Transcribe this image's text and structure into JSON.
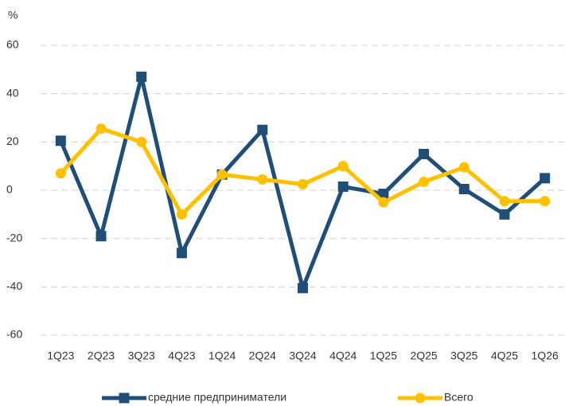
{
  "chart_data": {
    "type": "line",
    "ylabel": "%",
    "categories": [
      "1Q23",
      "2Q23",
      "3Q23",
      "4Q23",
      "1Q24",
      "2Q24",
      "3Q24",
      "4Q24",
      "1Q25",
      "2Q25",
      "3Q25",
      "4Q25",
      "1Q26"
    ],
    "series": [
      {
        "name": "средние предприниматели",
        "color": "#1f4e79",
        "marker": "square",
        "values": [
          20.5,
          -19,
          47,
          -26,
          6.5,
          25,
          -40.5,
          1.5,
          -1.5,
          15,
          0.5,
          -10,
          5
        ]
      },
      {
        "name": "Всего",
        "color": "#ffc000",
        "marker": "circle",
        "values": [
          7,
          25.5,
          20,
          -10,
          6.5,
          4.5,
          2.5,
          10,
          -5,
          3.5,
          9.5,
          -4.5,
          -4.5
        ]
      }
    ],
    "ylim": [
      -60,
      60
    ],
    "yticks": [
      -60,
      -40,
      -20,
      0,
      20,
      40,
      60
    ],
    "grid": true,
    "legend": "bottom"
  }
}
